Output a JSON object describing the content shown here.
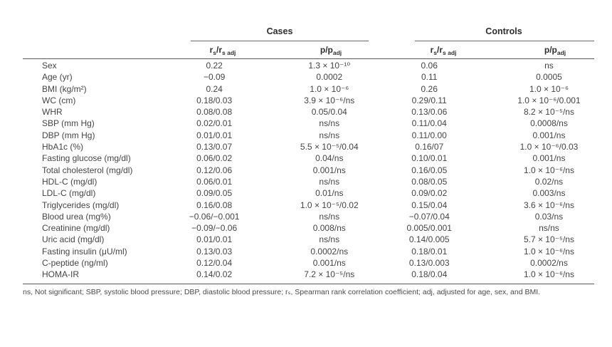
{
  "header": {
    "cases": "Cases",
    "controls": "Controls",
    "col_rs": "r",
    "col_rs_sub1": "s",
    "col_rs_slash": "/r",
    "col_rs_sub2": "s adj",
    "col_p": "p/p",
    "col_p_sub": "adj"
  },
  "rows": [
    {
      "label": "Sex",
      "c_rs": "0.22",
      "c_p": "1.3 × 10⁻¹⁰",
      "k_rs": "0.06",
      "k_p": "ns"
    },
    {
      "label": "Age (yr)",
      "c_rs": "−0.09",
      "c_p": "0.0002",
      "k_rs": "0.11",
      "k_p": "0.0005"
    },
    {
      "label": "BMI (kg/m²)",
      "c_rs": "0.24",
      "c_p": "1.0 × 10⁻⁶",
      "k_rs": "0.26",
      "k_p": "1.0 × 10⁻⁶"
    },
    {
      "label": "WC (cm)",
      "c_rs": "0.18/0.03",
      "c_p": "3.9 × 10⁻⁶/ns",
      "k_rs": "0.29/0.11",
      "k_p": "1.0 × 10⁻⁶/0.001"
    },
    {
      "label": "WHR",
      "c_rs": "0.08/0.08",
      "c_p": "0.05/0.04",
      "k_rs": "0.13/0.06",
      "k_p": "8.2 × 10⁻⁵/ns"
    },
    {
      "label": "SBP (mm Hg)",
      "c_rs": "0.02/0.01",
      "c_p": "ns/ns",
      "k_rs": "0.11/0.04",
      "k_p": "0.0008/ns"
    },
    {
      "label": "DBP (mm Hg)",
      "c_rs": "0.01/0.01",
      "c_p": "ns/ns",
      "k_rs": "0.11/0.00",
      "k_p": "0.001/ns"
    },
    {
      "label": "HbA1c (%)",
      "c_rs": "0.13/0.07",
      "c_p": "5.5 × 10⁻⁵/0.04",
      "k_rs": "0.16/07",
      "k_p": "1.0 × 10⁻⁶/0.03"
    },
    {
      "label": "Fasting glucose (mg/dl)",
      "c_rs": "0.06/0.02",
      "c_p": "0.04/ns",
      "k_rs": "0.10/0.01",
      "k_p": "0.001/ns"
    },
    {
      "label": "Total cholesterol (mg/dl)",
      "c_rs": "0.12/0.06",
      "c_p": "0.001/ns",
      "k_rs": "0.16/0.05",
      "k_p": "1.0 × 10⁻⁶/ns"
    },
    {
      "label": "HDL-C (mg/dl)",
      "c_rs": "0.06/0.01",
      "c_p": "ns/ns",
      "k_rs": "0.08/0.05",
      "k_p": "0.02/ns"
    },
    {
      "label": "LDL-C (mg/dl)",
      "c_rs": "0.09/0.05",
      "c_p": "0.01/ns",
      "k_rs": "0.09/0.02",
      "k_p": "0.003/ns"
    },
    {
      "label": "Triglycerides (mg/dl)",
      "c_rs": "0.16/0.08",
      "c_p": "1.0 × 10⁻⁵/0.02",
      "k_rs": "0.15/0.04",
      "k_p": "3.6 × 10⁻⁶/ns"
    },
    {
      "label": "Blood urea (mg%)",
      "c_rs": "−0.06/−0.001",
      "c_p": "ns/ns",
      "k_rs": "−0.07/0.04",
      "k_p": "0.03/ns"
    },
    {
      "label": "Creatinine (mg/dl)",
      "c_rs": "−0.09/−0.06",
      "c_p": "0.008/ns",
      "k_rs": "0.005/0.001",
      "k_p": "ns/ns"
    },
    {
      "label": "Uric acid (mg/dl)",
      "c_rs": "0.01/0.01",
      "c_p": "ns/ns",
      "k_rs": "0.14/0.005",
      "k_p": "5.7 × 10⁻⁵/ns"
    },
    {
      "label": "Fasting insulin (μU/ml)",
      "c_rs": "0.13/0.03",
      "c_p": "0.0002/ns",
      "k_rs": "0.18/0.01",
      "k_p": "1.0 × 10⁻⁶/ns"
    },
    {
      "label": "C-peptide (ng/ml)",
      "c_rs": "0.12/0.04",
      "c_p": "0.001/ns",
      "k_rs": "0.13/0.003",
      "k_p": "0.0002/ns"
    },
    {
      "label": "HOMA-IR",
      "c_rs": "0.14/0.02",
      "c_p": "7.2 × 10⁻⁵/ns",
      "k_rs": "0.18/0.04",
      "k_p": "1.0 × 10⁻⁶/ns"
    }
  ],
  "footnote": "ns, Not significant; SBP, systolic blood pressure; DBP, diastolic blood pressure; rₛ, Spearman rank correlation coefficient; adj, adjusted for age, sex, and BMI."
}
